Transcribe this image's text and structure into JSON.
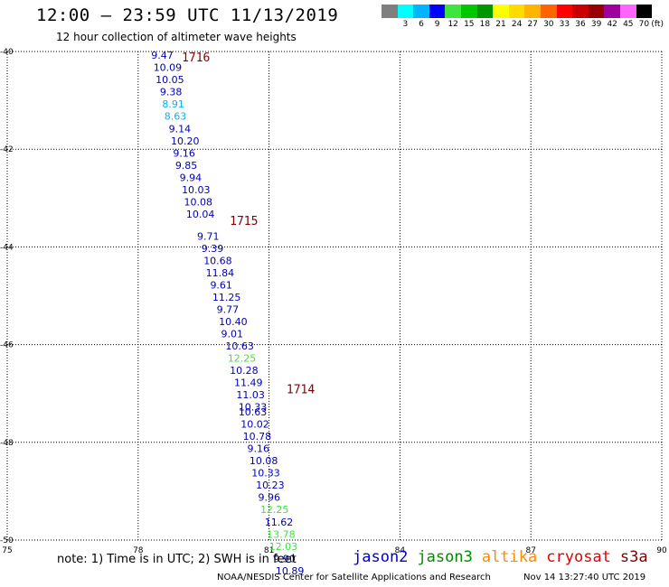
{
  "header": {
    "title": "12:00 – 23:59 UTC 11/13/2019",
    "subtitle": "12 hour collection of altimeter wave heights"
  },
  "legend": {
    "unit": "(ft)",
    "swatches": [
      {
        "label": "",
        "color": "#7f7f7f"
      },
      {
        "label": "3",
        "color": "#00ffff"
      },
      {
        "label": "6",
        "color": "#00b4ff"
      },
      {
        "label": "9",
        "color": "#0000ff"
      },
      {
        "label": "12",
        "color": "#3ce63c"
      },
      {
        "label": "15",
        "color": "#00c800"
      },
      {
        "label": "18",
        "color": "#009600"
      },
      {
        "label": "21",
        "color": "#ffff00"
      },
      {
        "label": "24",
        "color": "#ffdc00"
      },
      {
        "label": "27",
        "color": "#ffb400"
      },
      {
        "label": "30",
        "color": "#ff6400"
      },
      {
        "label": "33",
        "color": "#ff0000"
      },
      {
        "label": "36",
        "color": "#c80000"
      },
      {
        "label": "39",
        "color": "#960000"
      },
      {
        "label": "42",
        "color": "#a000a0"
      },
      {
        "label": "45",
        "color": "#ff64ff"
      },
      {
        "label": "70",
        "color": "#000000"
      }
    ]
  },
  "chart_data": {
    "type": "map",
    "xlim": [
      75,
      90
    ],
    "ylim": [
      -50,
      -40
    ],
    "x_ticks": [
      "75",
      "78",
      "81",
      "84",
      "87",
      "90"
    ],
    "y_ticks": [
      "-40",
      "-42",
      "-44",
      "-46",
      "-48",
      "-50"
    ],
    "grid": true,
    "pass_labels": [
      {
        "text": "1716",
        "lon": 79.0,
        "lat": -40.2
      },
      {
        "text": "1715",
        "lon": 80.1,
        "lat": -43.55
      },
      {
        "text": "1714",
        "lon": 81.4,
        "lat": -47.0
      }
    ],
    "observations": [
      {
        "v": "9.47",
        "lon": 78.3,
        "lat": -40.15,
        "c": "#0000b4"
      },
      {
        "v": "10.09",
        "lon": 78.35,
        "lat": -40.4,
        "c": "#0000b4"
      },
      {
        "v": "10.05",
        "lon": 78.4,
        "lat": -40.65,
        "c": "#0000b4"
      },
      {
        "v": "9.38",
        "lon": 78.5,
        "lat": -40.9,
        "c": "#0000b4"
      },
      {
        "v": "8.91",
        "lon": 78.55,
        "lat": -41.15,
        "c": "#00b4ff"
      },
      {
        "v": "8.63",
        "lon": 78.6,
        "lat": -41.4,
        "c": "#00b4ff"
      },
      {
        "v": "9.14",
        "lon": 78.7,
        "lat": -41.65,
        "c": "#0000b4"
      },
      {
        "v": "10.20",
        "lon": 78.75,
        "lat": -41.9,
        "c": "#0000b4"
      },
      {
        "v": "9.16",
        "lon": 78.8,
        "lat": -42.15,
        "c": "#0000b4"
      },
      {
        "v": "9.85",
        "lon": 78.85,
        "lat": -42.4,
        "c": "#0000b4"
      },
      {
        "v": "9.94",
        "lon": 78.95,
        "lat": -42.65,
        "c": "#0000b4"
      },
      {
        "v": "10.03",
        "lon": 79.0,
        "lat": -42.9,
        "c": "#0000b4"
      },
      {
        "v": "10.08",
        "lon": 79.05,
        "lat": -43.15,
        "c": "#0000b4"
      },
      {
        "v": "10.04",
        "lon": 79.1,
        "lat": -43.4,
        "c": "#0000b4"
      },
      {
        "v": "9.71",
        "lon": 79.35,
        "lat": -43.85,
        "c": "#0000b4"
      },
      {
        "v": "9.39",
        "lon": 79.45,
        "lat": -44.1,
        "c": "#0000b4"
      },
      {
        "v": "10.68",
        "lon": 79.5,
        "lat": -44.35,
        "c": "#0000b4"
      },
      {
        "v": "11.84",
        "lon": 79.55,
        "lat": -44.6,
        "c": "#0000b4"
      },
      {
        "v": "9.61",
        "lon": 79.65,
        "lat": -44.85,
        "c": "#0000b4"
      },
      {
        "v": "11.25",
        "lon": 79.7,
        "lat": -45.1,
        "c": "#0000b4"
      },
      {
        "v": "9.77",
        "lon": 79.8,
        "lat": -45.35,
        "c": "#0000b4"
      },
      {
        "v": "10.40",
        "lon": 79.85,
        "lat": -45.6,
        "c": "#0000b4"
      },
      {
        "v": "9.01",
        "lon": 79.9,
        "lat": -45.85,
        "c": "#0000b4"
      },
      {
        "v": "10.63",
        "lon": 80.0,
        "lat": -46.1,
        "c": "#0000b4"
      },
      {
        "v": "12.25",
        "lon": 80.05,
        "lat": -46.35,
        "c": "#3ce63c"
      },
      {
        "v": "10.28",
        "lon": 80.1,
        "lat": -46.6,
        "c": "#0000b4"
      },
      {
        "v": "11.49",
        "lon": 80.2,
        "lat": -46.85,
        "c": "#0000b4"
      },
      {
        "v": "11.03",
        "lon": 80.25,
        "lat": -47.1,
        "c": "#0000b4"
      },
      {
        "v": "10.33",
        "lon": 80.3,
        "lat": -47.35,
        "c": "#0000b4"
      },
      {
        "v": "10.63",
        "lon": 80.3,
        "lat": -47.45,
        "c": "#0000b4"
      },
      {
        "v": "10.02",
        "lon": 80.35,
        "lat": -47.7,
        "c": "#0000b4"
      },
      {
        "v": "10.78",
        "lon": 80.4,
        "lat": -47.95,
        "c": "#0000b4"
      },
      {
        "v": "9.16",
        "lon": 80.5,
        "lat": -48.2,
        "c": "#0000b4"
      },
      {
        "v": "10.08",
        "lon": 80.55,
        "lat": -48.45,
        "c": "#0000b4"
      },
      {
        "v": "10.33",
        "lon": 80.6,
        "lat": -48.7,
        "c": "#0000b4"
      },
      {
        "v": "10.23",
        "lon": 80.7,
        "lat": -48.95,
        "c": "#0000b4"
      },
      {
        "v": "9.96",
        "lon": 80.75,
        "lat": -49.2,
        "c": "#0000b4"
      },
      {
        "v": "12.25",
        "lon": 80.8,
        "lat": -49.45,
        "c": "#3ce63c"
      },
      {
        "v": "11.62",
        "lon": 80.9,
        "lat": -49.7,
        "c": "#0000b4"
      },
      {
        "v": "13.78",
        "lon": 80.95,
        "lat": -49.95,
        "c": "#3ce63c"
      },
      {
        "v": "12.03",
        "lon": 81.0,
        "lat": -50.2,
        "c": "#3ce63c"
      },
      {
        "v": "9.90",
        "lon": 81.1,
        "lat": -50.45,
        "c": "#0000b4"
      },
      {
        "v": "10.89",
        "lon": 81.15,
        "lat": -50.7,
        "c": "#0000b4"
      }
    ]
  },
  "footer": {
    "note": "note:  1) Time is in UTC;  2) SWH is in feet",
    "satellites": [
      {
        "name": "jason2",
        "color": "#0000cc"
      },
      {
        "name": "jason3",
        "color": "#008c00"
      },
      {
        "name": "altika",
        "color": "#ff8c00"
      },
      {
        "name": "cryosat",
        "color": "#e60000"
      },
      {
        "name": "s3a",
        "color": "#800000"
      }
    ],
    "credit": "NOAA/NESDIS Center for Satellite Applications and Research",
    "generated": "Nov 14 13:27:40 UTC 2019"
  }
}
